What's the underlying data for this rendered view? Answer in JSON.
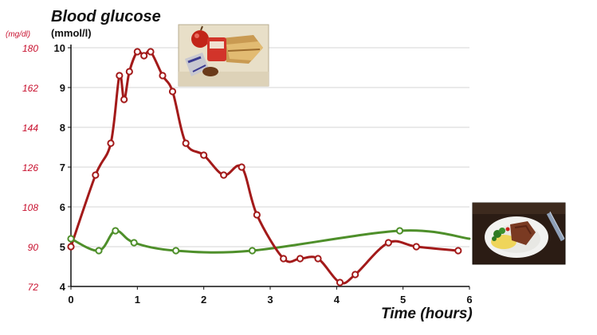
{
  "chart_data": {
    "type": "line",
    "title": "Blood glucose",
    "ylabel": "(mmol/l)",
    "ylabel_secondary": "(mg/dl)",
    "xlabel": "Time (hours)",
    "xlim": [
      0,
      6
    ],
    "ylim": [
      4,
      10
    ],
    "x_ticks": [
      "0",
      "1",
      "2",
      "3",
      "4",
      "5",
      "6"
    ],
    "y_ticks": [
      "4",
      "5",
      "6",
      "7",
      "8",
      "9",
      "10"
    ],
    "y_ticks_secondary": [
      "72",
      "90",
      "108",
      "126",
      "144",
      "162",
      "180"
    ],
    "grid": true,
    "colors": {
      "series_1": "#a31a1a",
      "series_2": "#4e8f2a",
      "secondary_axis": "#c8102e"
    },
    "series": [
      {
        "marker_points": [
          [
            0.0,
            5.0
          ],
          [
            0.37,
            6.8
          ],
          [
            0.6,
            7.6
          ],
          [
            0.73,
            9.3
          ],
          [
            0.8,
            8.7
          ],
          [
            0.88,
            9.4
          ],
          [
            1.0,
            9.9
          ],
          [
            1.1,
            9.8
          ],
          [
            1.2,
            9.9
          ],
          [
            1.38,
            9.3
          ],
          [
            1.53,
            8.9
          ],
          [
            1.73,
            7.6
          ],
          [
            2.0,
            7.3
          ],
          [
            2.3,
            6.8
          ],
          [
            2.57,
            7.0
          ],
          [
            2.8,
            5.8
          ],
          [
            3.2,
            4.7
          ],
          [
            3.45,
            4.7
          ],
          [
            3.72,
            4.7
          ],
          [
            4.05,
            4.1
          ],
          [
            4.28,
            4.3
          ],
          [
            4.78,
            5.1
          ],
          [
            5.2,
            5.0
          ],
          [
            5.83,
            4.9
          ]
        ]
      },
      {
        "marker_points": [
          [
            0.0,
            5.2
          ],
          [
            0.42,
            4.9
          ],
          [
            0.67,
            5.4
          ],
          [
            0.95,
            5.1
          ],
          [
            1.58,
            4.9
          ],
          [
            2.73,
            4.9
          ],
          [
            4.95,
            5.4
          ]
        ],
        "end_point": [
          6.0,
          5.2
        ]
      }
    ]
  }
}
